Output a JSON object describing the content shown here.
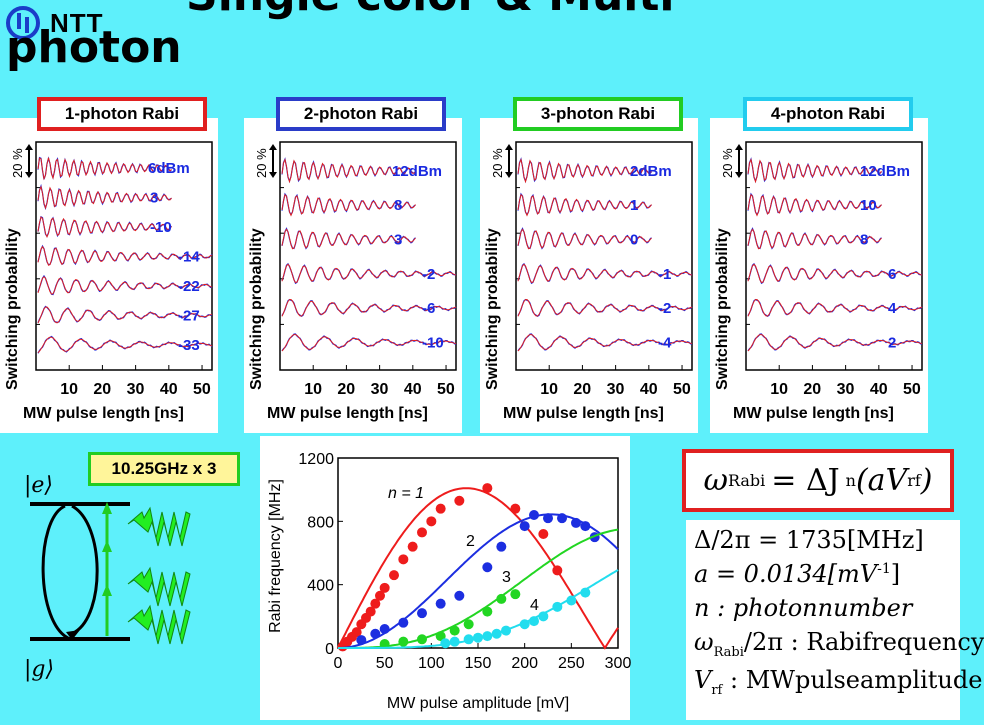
{
  "header": {
    "title_line1": "Single color & Multi",
    "title_line2": "photon",
    "logo_text": "NTT"
  },
  "panels": [
    {
      "label": "1-photon Rabi",
      "border": "#e02020",
      "traces": [
        "6dBm",
        "3",
        "-10",
        "-14",
        "-22",
        "-27",
        "-33"
      ]
    },
    {
      "label": "2-photon Rabi",
      "border": "#2a3cc8",
      "traces": [
        "12dBm",
        "8",
        "3",
        "-2",
        "-6",
        "-10"
      ]
    },
    {
      "label": "3-photon Rabi",
      "border": "#22cc22",
      "traces": [
        "2dBm",
        "1",
        "0",
        "-1",
        "-2",
        "-4"
      ]
    },
    {
      "label": "4-photon Rabi",
      "border": "#22ccee",
      "traces": [
        "12dBm",
        "10",
        "8",
        "6",
        "4",
        "2"
      ]
    }
  ],
  "panel_axes": {
    "scale_label": "20 %",
    "ylabel": "Switching probability",
    "xlabel": "MW pulse length [ns]",
    "xticks": [
      "10",
      "20",
      "30",
      "40",
      "50"
    ]
  },
  "energy_levels": {
    "excited": "|e⟩",
    "ground": "|g⟩",
    "frequency_label": "10.25GHz x 3"
  },
  "chart_data": {
    "type": "scatter",
    "xlabel": "MW pulse amplitude [mV]",
    "ylabel": "Rabi frequency [MHz]",
    "xlim": [
      0,
      300
    ],
    "ylim": [
      0,
      1200
    ],
    "xticks": [
      "0",
      "50",
      "100",
      "150",
      "200",
      "250",
      "300"
    ],
    "yticks": [
      "0",
      "400",
      "800",
      "1200"
    ],
    "series": [
      {
        "name": "n = 1",
        "color": "#ee1c1c",
        "x": [
          5,
          10,
          15,
          20,
          25,
          30,
          35,
          40,
          45,
          50,
          60,
          70,
          80,
          90,
          100,
          110,
          130,
          160,
          190,
          220,
          235
        ],
        "y": [
          10,
          40,
          70,
          100,
          150,
          190,
          230,
          280,
          330,
          380,
          460,
          560,
          640,
          730,
          800,
          880,
          930,
          1010,
          880,
          720,
          490
        ]
      },
      {
        "name": "2",
        "color": "#1c2ee0",
        "x": [
          25,
          40,
          50,
          70,
          90,
          110,
          130,
          160,
          175,
          200,
          210,
          225,
          240,
          255,
          265,
          275
        ],
        "y": [
          50,
          90,
          120,
          160,
          220,
          280,
          330,
          510,
          640,
          770,
          840,
          820,
          820,
          790,
          770,
          700
        ]
      },
      {
        "name": "3",
        "color": "#22d622",
        "x": [
          50,
          70,
          90,
          110,
          125,
          140,
          160,
          175,
          190
        ],
        "y": [
          25,
          40,
          55,
          75,
          110,
          150,
          230,
          310,
          340
        ]
      },
      {
        "name": "4",
        "color": "#22ddee",
        "x": [
          115,
          125,
          140,
          150,
          160,
          170,
          180,
          200,
          210,
          220,
          235,
          250,
          265
        ],
        "y": [
          30,
          40,
          55,
          65,
          75,
          90,
          110,
          150,
          170,
          200,
          260,
          300,
          350
        ]
      }
    ]
  },
  "formula": {
    "lhs": "ω",
    "lhs_sub": "Rabi",
    "rhs": "= ΔJ",
    "rhs_sub": "n",
    "rhs_arg": "(aV",
    "rhs_arg_sub": "rf",
    "rhs_end": ")"
  },
  "params": {
    "delta": "Δ/2π = 1735[MHz]",
    "a": "a = 0.0134[mV",
    "a_exp": "-1",
    "a_end": "]",
    "n": "n : photonnumber",
    "omega_label": "ω",
    "omega_sub": "Rabi",
    "omega_rest": "/2π : Rabifrequency",
    "v_label": "V",
    "v_sub": "rf",
    "v_rest": " : MWpulseamplitude"
  }
}
